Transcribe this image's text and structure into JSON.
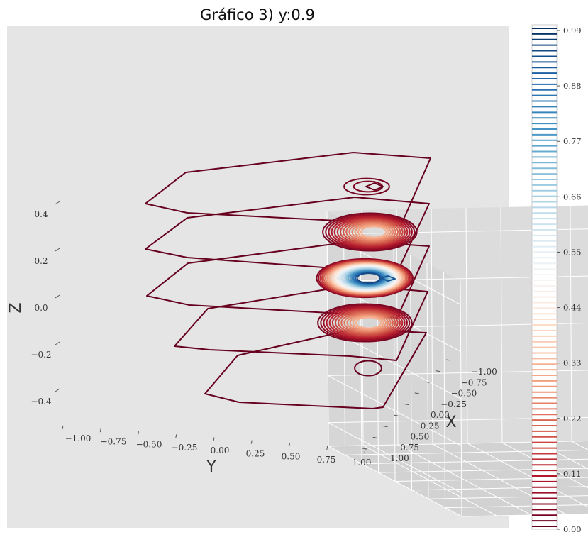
{
  "chart_data": {
    "type": "contour3d",
    "title": "Gráfico 3) y:0.9",
    "xlabel": "X",
    "ylabel": "Y",
    "zlabel": "Z",
    "xticks": [
      "−1.00",
      "−0.75",
      "−0.50",
      "−0.25",
      "0.00",
      "0.25",
      "0.50",
      "0.75",
      "1.00"
    ],
    "yticks": [
      "−1.00",
      "−0.75",
      "−0.50",
      "−0.25",
      "0.00",
      "0.25",
      "0.50",
      "0.75",
      "1.00"
    ],
    "zticks": [
      "−0.4",
      "−0.2",
      "0.0",
      "0.2",
      "0.4"
    ],
    "xlim": [
      -1.0,
      1.0
    ],
    "ylim": [
      -1.0,
      1.0
    ],
    "zlim": [
      -0.5,
      0.5
    ],
    "grid": true,
    "colormap": "RdBu",
    "colorbar": {
      "min": 0.0,
      "max": 0.99,
      "levels": 90,
      "ticks": [
        "0.00",
        "0.11",
        "0.22",
        "0.33",
        "0.44",
        "0.55",
        "0.66",
        "0.77",
        "0.88",
        "0.99"
      ]
    },
    "layers": [
      {
        "z": 0.4,
        "value_range": [
          0.0,
          0.99
        ]
      },
      {
        "z": 0.2,
        "value_range": [
          0.0,
          0.35
        ]
      },
      {
        "z": 0.0,
        "value_range": [
          0.0,
          0.99
        ]
      },
      {
        "z": -0.2,
        "value_range": [
          0.0,
          0.35
        ]
      },
      {
        "z": -0.4,
        "value_range": [
          0.0,
          0.05
        ]
      }
    ],
    "colors": {
      "pane": "#e5e5e5",
      "outer_contour": "#67001f",
      "low": "#67001f",
      "mid": "#f7f7f7",
      "high": "#053061"
    }
  }
}
